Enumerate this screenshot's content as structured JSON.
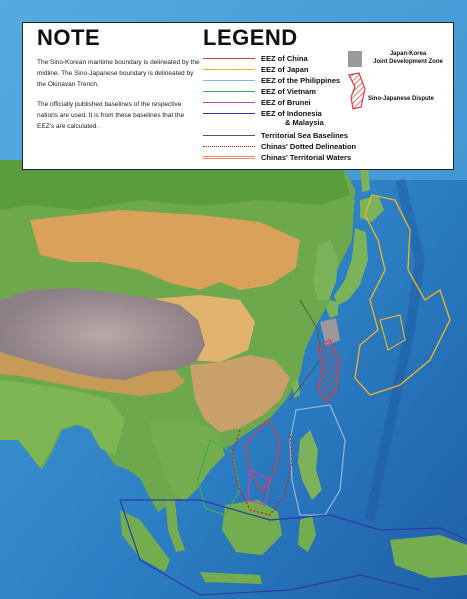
{
  "note": {
    "title": "NOTE",
    "paragraph1": "The Sino-Korean maritime boundary is delineated by the midline. The Sino-Japanese boundary is delineated by the Okinavan Trench.",
    "paragraph2": "The officially published baselines of the respective nations are used. It is from these baselines that the EEZ's  are calculated."
  },
  "legend": {
    "title": "LEGEND",
    "items": [
      {
        "label": "EEZ of China",
        "color": "#e03c3c",
        "style": "solid"
      },
      {
        "label": "EEZ of Japan",
        "color": "#e6b12a",
        "style": "solid"
      },
      {
        "label": "EEZ of the Philippines",
        "color": "#8ab4d8",
        "style": "solid"
      },
      {
        "label": "EEZ of Vietnam",
        "color": "#3fae55",
        "style": "solid"
      },
      {
        "label": "EEZ of Brunei",
        "color": "#d23ca8",
        "style": "solid"
      },
      {
        "label": "EEZ of Indonesia",
        "color": "#2d3aa8",
        "style": "solid"
      },
      {
        "label": "& Malaysia",
        "color": "",
        "style": "none"
      },
      {
        "label": "Territorial Sea Baselines",
        "color": "#555555",
        "style": "solid"
      },
      {
        "label": "Chinas' Dotted Delineation",
        "color": "#d22020",
        "style": "dotted"
      },
      {
        "label": "Chinas' Territorial Waters",
        "color": "#f08a6a",
        "style": "double"
      }
    ],
    "joint_zone": {
      "label_line1": "Japan-Korea",
      "label_line2": "Joint Development Zone",
      "color": "#9a9a9a"
    },
    "dispute": {
      "label": "Sino-Japanese Dispute",
      "color": "#e03c3c"
    }
  }
}
